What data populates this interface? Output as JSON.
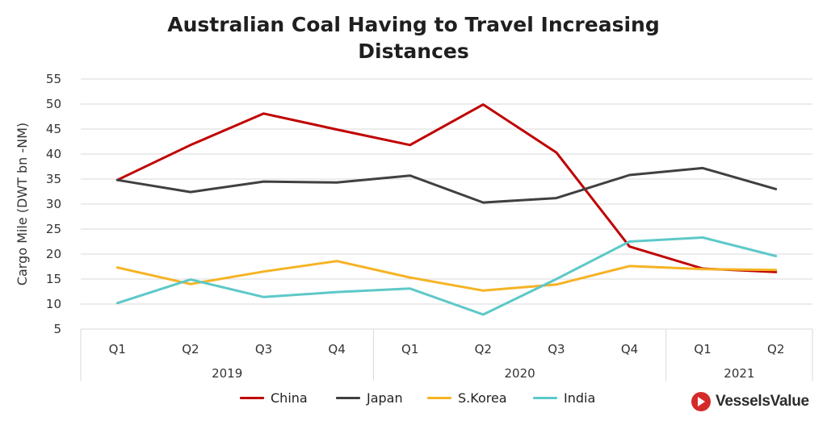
{
  "chart_data": {
    "type": "line",
    "title": [
      "Australian Coal Having to Travel Increasing",
      "Distances"
    ],
    "ylabel": "Cargo Mile (DWT bn -NM)",
    "ylim": [
      5,
      55
    ],
    "yticks": [
      5,
      10,
      15,
      20,
      25,
      30,
      35,
      40,
      45,
      50,
      55
    ],
    "grid": true,
    "legend_position": "bottom",
    "categories": [
      "Q1",
      "Q2",
      "Q3",
      "Q4",
      "Q1",
      "Q2",
      "Q3",
      "Q4",
      "Q1",
      "Q2"
    ],
    "year_groups": [
      {
        "label": "2019",
        "count": 4
      },
      {
        "label": "2020",
        "count": 4
      },
      {
        "label": "2021",
        "count": 2
      }
    ],
    "series": [
      {
        "name": "China",
        "color": "#c00000",
        "values": [
          34.8,
          41.8,
          48.1,
          44.9,
          41.8,
          49.9,
          40.3,
          21.5,
          17.1,
          16.4
        ]
      },
      {
        "name": "Japan",
        "color": "#404040",
        "values": [
          34.8,
          32.4,
          34.5,
          34.3,
          35.7,
          30.3,
          31.2,
          35.8,
          37.2,
          33.0
        ]
      },
      {
        "name": "S.Korea",
        "color": "#f5b324",
        "values": [
          17.3,
          14.0,
          16.5,
          18.6,
          15.3,
          12.7,
          13.9,
          17.6,
          17.0,
          16.8
        ]
      },
      {
        "name": "India",
        "color": "#5ec8c8",
        "values": [
          10.2,
          14.9,
          11.4,
          12.4,
          13.1,
          7.9,
          15.0,
          22.5,
          23.3,
          19.6
        ]
      }
    ]
  },
  "brand": {
    "name": "VesselsValue",
    "color": "#d42a2a"
  }
}
